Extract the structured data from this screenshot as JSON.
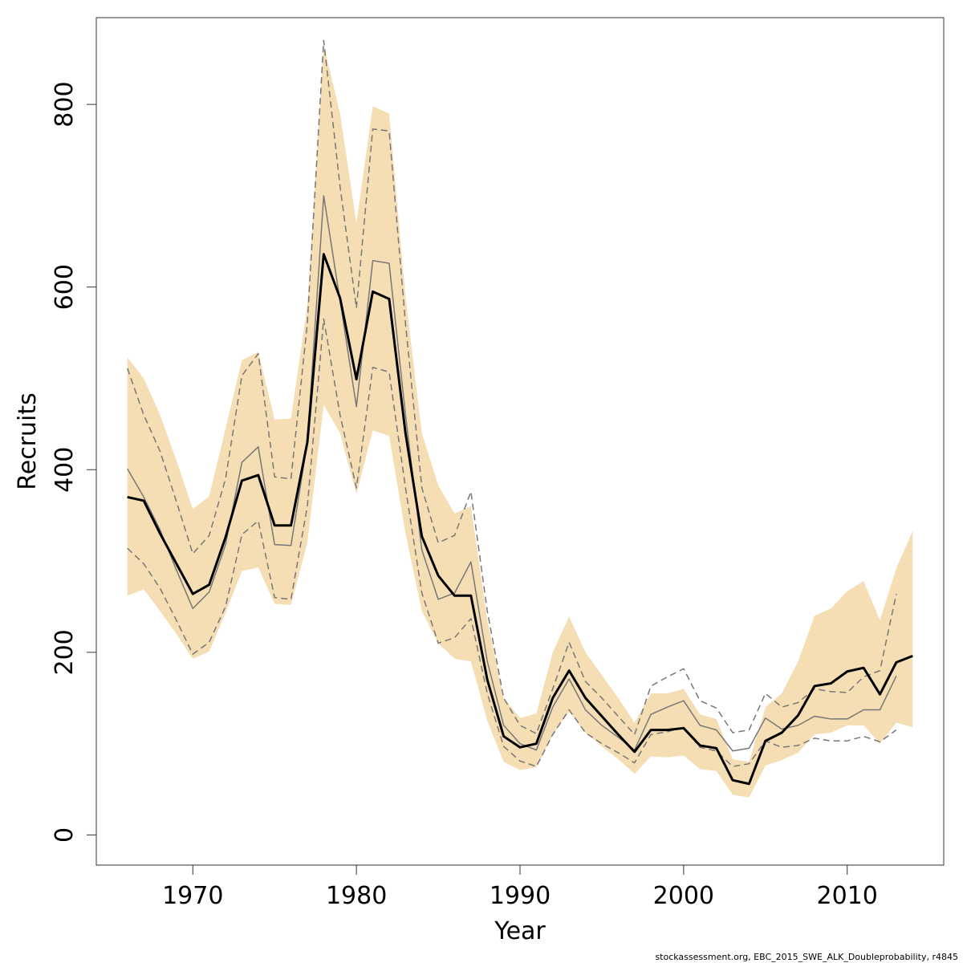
{
  "chart_data": {
    "type": "line",
    "xlabel": "Year",
    "ylabel": "Recruits",
    "footnote": "stockassessment.org, EBC_2015_SWE_ALK_Doubleprobability, r4845",
    "x": [
      1966,
      1967,
      1968,
      1969,
      1970,
      1971,
      1972,
      1973,
      1974,
      1975,
      1976,
      1977,
      1978,
      1979,
      1980,
      1981,
      1982,
      1983,
      1984,
      1985,
      1986,
      1987,
      1988,
      1989,
      1990,
      1991,
      1992,
      1993,
      1994,
      1995,
      1996,
      1997,
      1998,
      1999,
      2000,
      2001,
      2002,
      2003,
      2004,
      2005,
      2006,
      2007,
      2008,
      2009,
      2010,
      2011,
      2012,
      2013,
      2014
    ],
    "band": {
      "color": "#f5deb3",
      "upper": [
        523,
        500,
        460,
        410,
        357,
        371,
        445,
        520,
        529,
        455,
        456,
        580,
        865,
        790,
        670,
        798,
        790,
        590,
        440,
        383,
        352,
        360,
        235,
        150,
        128,
        133,
        200,
        239,
        200,
        175,
        150,
        123,
        155,
        155,
        160,
        132,
        127,
        83,
        80,
        140,
        155,
        190,
        240,
        248,
        267,
        278,
        235,
        292,
        333
      ],
      "lower": [
        262,
        269,
        245,
        220,
        193,
        201,
        243,
        289,
        293,
        253,
        252,
        320,
        471,
        440,
        373,
        443,
        437,
        330,
        245,
        210,
        193,
        190,
        125,
        80,
        71,
        74,
        110,
        135,
        112,
        97,
        83,
        67,
        86,
        85,
        87,
        72,
        70,
        44,
        41,
        76,
        82,
        90,
        110,
        112,
        120,
        120,
        100,
        123,
        118
      ]
    },
    "series": [
      {
        "color": "#777777",
        "style": "dashed",
        "width": 1.5,
        "values": [
          511,
          460,
          420,
          365,
          308,
          328,
          390,
          503,
          527,
          392,
          390,
          560,
          870,
          710,
          577,
          773,
          771,
          560,
          380,
          320,
          328,
          376,
          245,
          150,
          120,
          111,
          160,
          211,
          168,
          150,
          130,
          110,
          163,
          173,
          182,
          147,
          139,
          112,
          115,
          155,
          140,
          145,
          160,
          157,
          156,
          173,
          180,
          264,
          null
        ]
      },
      {
        "color": "#777777",
        "style": "dashed",
        "width": 1.5,
        "values": [
          314,
          297,
          270,
          235,
          198,
          211,
          250,
          329,
          344,
          260,
          258,
          360,
          565,
          460,
          380,
          512,
          507,
          380,
          265,
          210,
          216,
          237,
          155,
          97,
          81,
          75,
          110,
          137,
          112,
          100,
          90,
          79,
          110,
          113,
          118,
          96,
          92,
          75,
          78,
          103,
          96,
          98,
          106,
          103,
          103,
          108,
          102,
          115,
          null
        ]
      },
      {
        "color": "#777777",
        "style": "solid",
        "width": 1.5,
        "values": [
          401,
          370,
          334,
          290,
          248,
          266,
          318,
          408,
          425,
          318,
          317,
          430,
          700,
          585,
          469,
          629,
          626,
          460,
          312,
          258,
          265,
          299,
          190,
          120,
          100,
          93,
          140,
          171,
          137,
          120,
          107,
          93,
          132,
          140,
          147,
          120,
          115,
          92,
          95,
          128,
          116,
          120,
          130,
          127,
          127,
          137,
          137,
          174,
          null
        ]
      },
      {
        "color": "#000000",
        "style": "solid",
        "width": 3,
        "values": [
          370,
          366,
          330,
          297,
          264,
          274,
          326,
          388,
          394,
          339,
          339,
          430,
          636,
          588,
          499,
          595,
          587,
          440,
          327,
          284,
          262,
          262,
          170,
          108,
          96,
          100,
          150,
          180,
          150,
          130,
          110,
          91,
          115,
          115,
          117,
          98,
          95,
          60,
          56,
          103,
          112,
          131,
          163,
          166,
          179,
          183,
          154,
          189,
          196
        ]
      }
    ],
    "xlim": [
      1964.1,
      2015.9
    ],
    "ylim": [
      -33,
      895
    ],
    "xticks": [
      1970,
      1980,
      1990,
      2000,
      2010
    ],
    "yticks": [
      0,
      200,
      400,
      600,
      800
    ]
  }
}
